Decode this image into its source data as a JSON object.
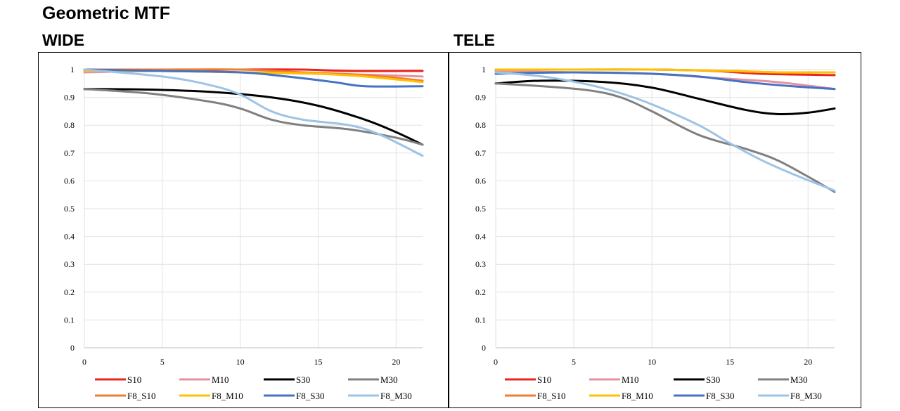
{
  "title": "Geometric MTF",
  "chart_data": [
    {
      "type": "line",
      "title": "WIDE",
      "xlim": [
        0,
        21.7
      ],
      "ylim": [
        0,
        1
      ],
      "x_ticks": [
        "0",
        "5",
        "10",
        "15",
        "20"
      ],
      "y_ticks": [
        "0",
        "0.1",
        "0.2",
        "0.3",
        "0.4",
        "0.5",
        "0.6",
        "0.7",
        "0.8",
        "0.9",
        "1"
      ],
      "grid": true,
      "legend_position": "bottom",
      "series": [
        {
          "name": "S10",
          "color": "#e8241c",
          "points": [
            [
              0,
              1
            ],
            [
              5,
              1
            ],
            [
              10,
              1
            ],
            [
              14,
              1
            ],
            [
              17,
              0.995
            ],
            [
              21.7,
              0.995
            ]
          ]
        },
        {
          "name": "M10",
          "color": "#e591a0",
          "points": [
            [
              0,
              0.99
            ],
            [
              5,
              0.995
            ],
            [
              10,
              0.99
            ],
            [
              15,
              0.985
            ],
            [
              19,
              0.98
            ],
            [
              21.7,
              0.975
            ]
          ]
        },
        {
          "name": "S30",
          "color": "#000000",
          "points": [
            [
              0,
              0.93
            ],
            [
              4,
              0.928
            ],
            [
              8,
              0.92
            ],
            [
              12,
              0.9
            ],
            [
              15,
              0.87
            ],
            [
              18,
              0.82
            ],
            [
              20,
              0.775
            ],
            [
              21.7,
              0.73
            ]
          ]
        },
        {
          "name": "M30",
          "color": "#808080",
          "points": [
            [
              0,
              0.93
            ],
            [
              4,
              0.915
            ],
            [
              8,
              0.885
            ],
            [
              10,
              0.86
            ],
            [
              12,
              0.82
            ],
            [
              14,
              0.8
            ],
            [
              17,
              0.785
            ],
            [
              20,
              0.755
            ],
            [
              21.7,
              0.73
            ]
          ]
        },
        {
          "name": "F8_S10",
          "color": "#ed7d31",
          "points": [
            [
              0,
              1
            ],
            [
              5,
              1
            ],
            [
              10,
              1
            ],
            [
              14,
              0.99
            ],
            [
              18,
              0.98
            ],
            [
              21.7,
              0.96
            ]
          ]
        },
        {
          "name": "F8_M10",
          "color": "#ffc000",
          "points": [
            [
              0,
              0.995
            ],
            [
              5,
              0.995
            ],
            [
              10,
              0.99
            ],
            [
              15,
              0.985
            ],
            [
              18,
              0.975
            ],
            [
              21.7,
              0.955
            ]
          ]
        },
        {
          "name": "F8_S30",
          "color": "#4472c4",
          "points": [
            [
              0,
              1
            ],
            [
              5,
              0.995
            ],
            [
              10,
              0.99
            ],
            [
              13,
              0.975
            ],
            [
              16,
              0.955
            ],
            [
              18,
              0.94
            ],
            [
              21.7,
              0.94
            ]
          ]
        },
        {
          "name": "F8_M30",
          "color": "#9dc3e6",
          "points": [
            [
              0,
              1
            ],
            [
              5,
              0.975
            ],
            [
              8,
              0.945
            ],
            [
              10,
              0.91
            ],
            [
              12,
              0.85
            ],
            [
              14,
              0.82
            ],
            [
              17,
              0.8
            ],
            [
              19,
              0.765
            ],
            [
              21.7,
              0.69
            ]
          ]
        }
      ]
    },
    {
      "type": "line",
      "title": "TELE",
      "xlim": [
        0,
        21.7
      ],
      "ylim": [
        0,
        1
      ],
      "x_ticks": [
        "0",
        "5",
        "10",
        "15",
        "20"
      ],
      "y_ticks": [
        "0",
        "0.1",
        "0.2",
        "0.3",
        "0.4",
        "0.5",
        "0.6",
        "0.7",
        "0.8",
        "0.9",
        "1"
      ],
      "grid": true,
      "legend_position": "bottom",
      "series": [
        {
          "name": "S10",
          "color": "#e8241c",
          "points": [
            [
              0,
              1
            ],
            [
              5,
              1
            ],
            [
              10,
              1
            ],
            [
              14,
              0.995
            ],
            [
              17,
              0.985
            ],
            [
              21.7,
              0.98
            ]
          ]
        },
        {
          "name": "M10",
          "color": "#e591a0",
          "points": [
            [
              0,
              0.995
            ],
            [
              5,
              0.99
            ],
            [
              10,
              0.985
            ],
            [
              14,
              0.97
            ],
            [
              18,
              0.955
            ],
            [
              21.7,
              0.93
            ]
          ]
        },
        {
          "name": "S30",
          "color": "#000000",
          "points": [
            [
              0,
              0.95
            ],
            [
              3,
              0.96
            ],
            [
              7,
              0.955
            ],
            [
              10,
              0.935
            ],
            [
              13,
              0.895
            ],
            [
              16,
              0.855
            ],
            [
              18,
              0.84
            ],
            [
              20,
              0.845
            ],
            [
              21.7,
              0.86
            ]
          ]
        },
        {
          "name": "M30",
          "color": "#808080",
          "points": [
            [
              0,
              0.95
            ],
            [
              3,
              0.94
            ],
            [
              6,
              0.925
            ],
            [
              8,
              0.9
            ],
            [
              10,
              0.85
            ],
            [
              13,
              0.765
            ],
            [
              16,
              0.715
            ],
            [
              18,
              0.675
            ],
            [
              20,
              0.615
            ],
            [
              21.7,
              0.56
            ]
          ]
        },
        {
          "name": "F8_S10",
          "color": "#ed7d31",
          "points": [
            [
              0,
              1
            ],
            [
              5,
              1
            ],
            [
              10,
              1
            ],
            [
              15,
              0.995
            ],
            [
              18,
              0.99
            ],
            [
              21.7,
              0.99
            ]
          ]
        },
        {
          "name": "F8_M10",
          "color": "#ffc000",
          "points": [
            [
              0,
              1
            ],
            [
              5,
              1
            ],
            [
              10,
              1
            ],
            [
              15,
              0.995
            ],
            [
              18,
              0.99
            ],
            [
              21.7,
              0.99
            ]
          ]
        },
        {
          "name": "F8_S30",
          "color": "#4472c4",
          "points": [
            [
              0,
              0.985
            ],
            [
              5,
              0.99
            ],
            [
              10,
              0.985
            ],
            [
              13,
              0.975
            ],
            [
              16,
              0.955
            ],
            [
              19,
              0.94
            ],
            [
              21.7,
              0.93
            ]
          ]
        },
        {
          "name": "F8_M30",
          "color": "#9dc3e6",
          "points": [
            [
              0,
              0.99
            ],
            [
              3,
              0.975
            ],
            [
              6,
              0.945
            ],
            [
              8,
              0.915
            ],
            [
              10,
              0.875
            ],
            [
              13,
              0.8
            ],
            [
              15,
              0.735
            ],
            [
              17,
              0.675
            ],
            [
              19,
              0.625
            ],
            [
              21.7,
              0.565
            ]
          ]
        }
      ]
    }
  ]
}
